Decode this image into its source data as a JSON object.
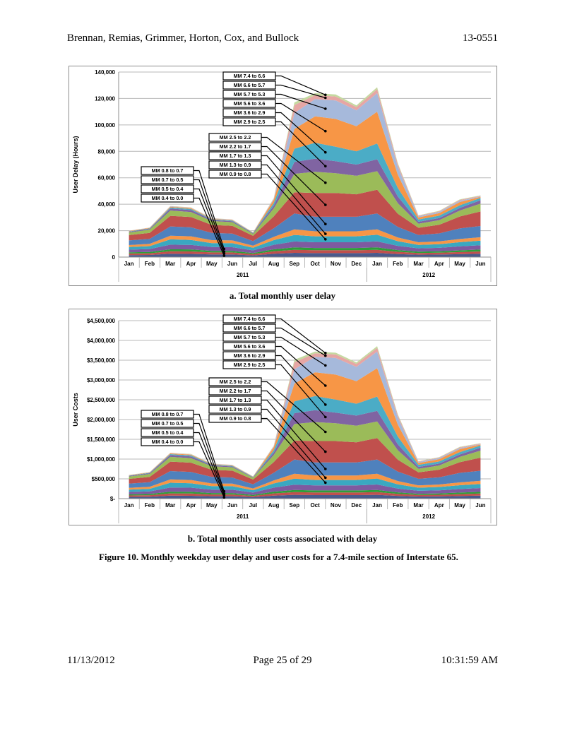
{
  "header": {
    "authors": "Brennan, Remias, Grimmer, Horton, Cox, and Bullock",
    "doc_id": "13-0551"
  },
  "footer": {
    "date": "11/13/2012",
    "page": "Page 25 of 29",
    "time": "10:31:59 AM"
  },
  "figure_caption": "Figure 10. Monthly weekday user delay and user costs for a 7.4-mile section of Interstate 65.",
  "colors": {
    "series": [
      "#4a5a8c",
      "#c0504d",
      "#2e9e3a",
      "#7e5aa0",
      "#3aa8c1",
      "#f79646",
      "#4f81bd",
      "#c0504d",
      "#9bbb59",
      "#8064a2",
      "#4bacc6",
      "#f79646",
      "#a6b9db",
      "#e6a6a4",
      "#c5d9a0"
    ]
  },
  "chart_data": [
    {
      "type": "area",
      "subtitle": "a. Total monthly user delay",
      "ylabel": "User Delay (Hours)",
      "ylim": [
        0,
        140000
      ],
      "yticks": [
        0,
        20000,
        40000,
        60000,
        80000,
        100000,
        120000,
        140000
      ],
      "ytick_labels": [
        "0",
        "20,000",
        "40,000",
        "60,000",
        "80,000",
        "100,000",
        "120,000",
        "140,000"
      ],
      "categories": [
        "Jan",
        "Feb",
        "Mar",
        "Apr",
        "May",
        "Jun",
        "Jul",
        "Aug",
        "Sep",
        "Oct",
        "Nov",
        "Dec",
        "Jan",
        "Feb",
        "Mar",
        "Apr",
        "May",
        "Jun"
      ],
      "years": [
        {
          "label": "2011",
          "start": 0,
          "end": 11
        },
        {
          "label": "2012",
          "start": 12,
          "end": 17
        }
      ],
      "grid": true,
      "series": [
        {
          "name": "MM 0.4 to 0.0",
          "values": [
            1500,
            1600,
            2500,
            2400,
            2000,
            2000,
            1300,
            2500,
            3200,
            3000,
            3000,
            3000,
            3200,
            2300,
            1800,
            1900,
            2200,
            2500
          ]
        },
        {
          "name": "MM 0.5 to 0.4",
          "values": [
            1200,
            1300,
            1900,
            1900,
            1500,
            1500,
            1000,
            1900,
            2300,
            2200,
            2200,
            2200,
            2300,
            1700,
            1300,
            1400,
            1600,
            1800
          ]
        },
        {
          "name": "MM 0.7 to 0.5",
          "values": [
            900,
            1000,
            1500,
            1500,
            1200,
            1200,
            800,
            1500,
            1800,
            1700,
            1700,
            1700,
            1800,
            1300,
            1000,
            1100,
            1300,
            1400
          ]
        },
        {
          "name": "MM 0.8 to 0.7",
          "values": [
            2000,
            2200,
            3500,
            3400,
            2900,
            2800,
            2000,
            3400,
            4500,
            4300,
            4300,
            4300,
            4600,
            3200,
            2500,
            2600,
            3000,
            3200
          ]
        },
        {
          "name": "MM 0.9 to 0.8",
          "values": [
            2000,
            2200,
            4000,
            3800,
            3000,
            3000,
            2000,
            3500,
            5000,
            4500,
            4500,
            4500,
            5000,
            3500,
            2600,
            2800,
            3200,
            3500
          ]
        },
        {
          "name": "MM 1.3 to 0.9",
          "values": [
            1500,
            1700,
            2800,
            2700,
            2200,
            2100,
            1500,
            2500,
            4200,
            3800,
            3800,
            3800,
            4100,
            2800,
            2000,
            2100,
            2400,
            2600
          ]
        },
        {
          "name": "MM 1.7 to 1.3",
          "values": [
            3500,
            3800,
            7000,
            6800,
            5500,
            5200,
            3500,
            6500,
            12000,
            11000,
            11000,
            11000,
            12000,
            8000,
            5500,
            6000,
            8000,
            8500
          ]
        },
        {
          "name": "MM 2.2 to 1.7",
          "values": [
            4000,
            4500,
            8000,
            7800,
            6000,
            5800,
            4000,
            9000,
            16000,
            18000,
            18000,
            17000,
            18000,
            10000,
            5500,
            6500,
            9000,
            11000
          ]
        },
        {
          "name": "MM 2.5 to 2.2",
          "values": [
            2000,
            2500,
            4000,
            3800,
            3000,
            2800,
            1500,
            6000,
            14000,
            16000,
            15000,
            14000,
            14000,
            8000,
            3000,
            3500,
            4500,
            6000
          ]
        },
        {
          "name": "MM 2.9 to 2.5",
          "values": [
            500,
            600,
            1500,
            1500,
            800,
            700,
            400,
            2000,
            9000,
            10000,
            9000,
            8500,
            9000,
            5000,
            1500,
            1600,
            2000,
            2500
          ]
        },
        {
          "name": "MM 3.6 to 2.9",
          "values": [
            300,
            400,
            800,
            800,
            500,
            500,
            300,
            2000,
            10000,
            12000,
            11000,
            10000,
            12000,
            6500,
            1800,
            1800,
            2000,
            1800
          ]
        },
        {
          "name": "MM 5.6 to 3.6",
          "values": [
            300,
            300,
            600,
            600,
            400,
            400,
            200,
            2500,
            15000,
            20000,
            21000,
            19000,
            24000,
            10000,
            1500,
            2000,
            2500,
            800
          ]
        },
        {
          "name": "MM 5.7 to 5.3",
          "values": [
            100,
            100,
            200,
            200,
            200,
            200,
            100,
            500,
            12000,
            13000,
            14000,
            12000,
            14000,
            6000,
            800,
            900,
            1000,
            300
          ]
        },
        {
          "name": "MM 6.6 to 5.7",
          "values": [
            100,
            100,
            200,
            200,
            200,
            200,
            100,
            500,
            6000,
            3000,
            3000,
            2500,
            3000,
            1800,
            500,
            500,
            600,
            500
          ]
        },
        {
          "name": "MM 7.4 to 6.6",
          "values": [
            100,
            100,
            200,
            200,
            100,
            100,
            100,
            300,
            2000,
            1500,
            1500,
            1300,
            1500,
            900,
            300,
            300,
            400,
            300
          ]
        }
      ]
    },
    {
      "type": "area",
      "subtitle": "b. Total monthly user costs associated with delay",
      "ylabel": "User Costs",
      "ylim": [
        0,
        4500000
      ],
      "yticks": [
        0,
        500000,
        1000000,
        1500000,
        2000000,
        2500000,
        3000000,
        3500000,
        4000000,
        4500000
      ],
      "ytick_labels": [
        "$-",
        "$500,000",
        "$1,000,000",
        "$1,500,000",
        "$2,000,000",
        "$2,500,000",
        "$3,000,000",
        "$3,500,000",
        "$4,000,000",
        "$4,500,000"
      ],
      "categories": [
        "Jan",
        "Feb",
        "Mar",
        "Apr",
        "May",
        "Jun",
        "Jul",
        "Aug",
        "Sep",
        "Oct",
        "Nov",
        "Dec",
        "Jan",
        "Feb",
        "Mar",
        "Apr",
        "May",
        "Jun"
      ],
      "years": [
        {
          "label": "2011",
          "start": 0,
          "end": 11
        },
        {
          "label": "2012",
          "start": 12,
          "end": 17
        }
      ],
      "grid": true,
      "series": [
        {
          "name": "MM 0.4 to 0.0",
          "values": [
            45000,
            48000,
            75000,
            72000,
            60000,
            60000,
            39000,
            75000,
            96000,
            90000,
            90000,
            90000,
            96000,
            69000,
            54000,
            57000,
            66000,
            75000
          ]
        },
        {
          "name": "MM 0.5 to 0.4",
          "values": [
            36000,
            39000,
            57000,
            57000,
            45000,
            45000,
            30000,
            57000,
            69000,
            66000,
            66000,
            66000,
            69000,
            51000,
            39000,
            42000,
            48000,
            54000
          ]
        },
        {
          "name": "MM 0.7 to 0.5",
          "values": [
            27000,
            30000,
            45000,
            45000,
            36000,
            36000,
            24000,
            45000,
            54000,
            51000,
            51000,
            51000,
            54000,
            39000,
            30000,
            33000,
            39000,
            42000
          ]
        },
        {
          "name": "MM 0.8 to 0.7",
          "values": [
            60000,
            66000,
            105000,
            102000,
            87000,
            84000,
            60000,
            102000,
            135000,
            129000,
            129000,
            129000,
            138000,
            96000,
            75000,
            78000,
            90000,
            96000
          ]
        },
        {
          "name": "MM 0.9 to 0.8",
          "values": [
            60000,
            66000,
            120000,
            114000,
            90000,
            90000,
            60000,
            105000,
            150000,
            135000,
            135000,
            135000,
            150000,
            105000,
            78000,
            84000,
            96000,
            105000
          ]
        },
        {
          "name": "MM 1.3 to 0.9",
          "values": [
            45000,
            51000,
            84000,
            81000,
            66000,
            63000,
            45000,
            75000,
            126000,
            114000,
            114000,
            114000,
            123000,
            84000,
            60000,
            63000,
            72000,
            78000
          ]
        },
        {
          "name": "MM 1.7 to 1.3",
          "values": [
            105000,
            114000,
            210000,
            204000,
            165000,
            156000,
            105000,
            195000,
            360000,
            330000,
            330000,
            330000,
            360000,
            240000,
            165000,
            180000,
            240000,
            255000
          ]
        },
        {
          "name": "MM 2.2 to 1.7",
          "values": [
            120000,
            135000,
            240000,
            234000,
            180000,
            174000,
            120000,
            270000,
            480000,
            540000,
            540000,
            510000,
            540000,
            300000,
            165000,
            195000,
            270000,
            330000
          ]
        },
        {
          "name": "MM 2.5 to 2.2",
          "values": [
            60000,
            75000,
            120000,
            114000,
            90000,
            84000,
            45000,
            180000,
            420000,
            480000,
            450000,
            420000,
            420000,
            240000,
            90000,
            105000,
            135000,
            180000
          ]
        },
        {
          "name": "MM 2.9 to 2.5",
          "values": [
            15000,
            18000,
            45000,
            45000,
            24000,
            21000,
            12000,
            60000,
            270000,
            300000,
            270000,
            255000,
            270000,
            150000,
            45000,
            48000,
            60000,
            75000
          ]
        },
        {
          "name": "MM 3.6 to 2.9",
          "values": [
            9000,
            12000,
            24000,
            24000,
            15000,
            15000,
            9000,
            60000,
            300000,
            360000,
            330000,
            300000,
            360000,
            195000,
            54000,
            54000,
            60000,
            54000
          ]
        },
        {
          "name": "MM 5.6 to 3.6",
          "values": [
            9000,
            9000,
            18000,
            18000,
            12000,
            12000,
            6000,
            75000,
            450000,
            600000,
            630000,
            570000,
            720000,
            300000,
            45000,
            60000,
            75000,
            24000
          ]
        },
        {
          "name": "MM 5.7 to 5.3",
          "values": [
            3000,
            3000,
            6000,
            6000,
            6000,
            6000,
            3000,
            15000,
            360000,
            390000,
            420000,
            360000,
            420000,
            180000,
            24000,
            27000,
            30000,
            9000
          ]
        },
        {
          "name": "MM 6.6 to 5.7",
          "values": [
            3000,
            3000,
            6000,
            6000,
            6000,
            6000,
            3000,
            15000,
            180000,
            90000,
            90000,
            75000,
            90000,
            54000,
            15000,
            15000,
            18000,
            15000
          ]
        },
        {
          "name": "MM 7.4 to 6.6",
          "values": [
            3000,
            3000,
            6000,
            6000,
            3000,
            3000,
            3000,
            9000,
            60000,
            45000,
            45000,
            39000,
            45000,
            27000,
            9000,
            9000,
            12000,
            9000
          ]
        }
      ]
    }
  ]
}
